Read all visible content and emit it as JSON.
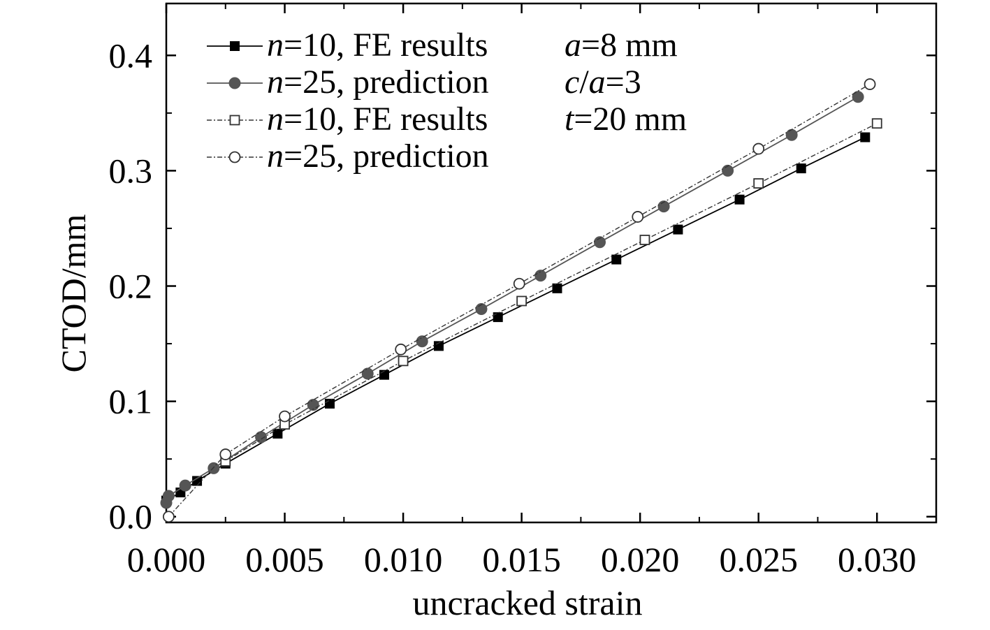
{
  "chart_data": {
    "type": "line",
    "title": "",
    "xlabel": "uncracked strain",
    "ylabel": "CTOD/mm",
    "xlim": [
      0.0,
      0.0325
    ],
    "ylim": [
      -0.005,
      0.445
    ],
    "xticks": [
      0.0,
      0.005,
      0.01,
      0.015,
      0.02,
      0.025,
      0.03
    ],
    "xtick_labels": [
      "0.000",
      "0.005",
      "0.010",
      "0.015",
      "0.020",
      "0.025",
      "0.030"
    ],
    "yticks": [
      0.0,
      0.1,
      0.2,
      0.3,
      0.4
    ],
    "ytick_labels": [
      "0.0",
      "0.1",
      "0.2",
      "0.3",
      "0.4"
    ],
    "grid": false,
    "legend_position": "top-left",
    "series": [
      {
        "name": "n=10, FE results",
        "n_label": "n",
        "rest_label": "=10, FE results",
        "marker": "square-filled",
        "color": "#000000",
        "line": "solid",
        "x": [
          0.0,
          0.0006,
          0.0013,
          0.0025,
          0.0047,
          0.0069,
          0.0092,
          0.0115,
          0.014,
          0.0165,
          0.019,
          0.0216,
          0.0242,
          0.0268,
          0.0295
        ],
        "y": [
          0.014,
          0.021,
          0.031,
          0.046,
          0.072,
          0.098,
          0.123,
          0.148,
          0.173,
          0.198,
          0.223,
          0.249,
          0.275,
          0.302,
          0.329
        ]
      },
      {
        "name": "n=25, prediction",
        "n_label": "n",
        "rest_label": "=25, prediction",
        "marker": "circle-filled",
        "color": "#555555",
        "line": "solid",
        "x": [
          0.0,
          0.0001,
          0.0008,
          0.002,
          0.004,
          0.0062,
          0.0085,
          0.0108,
          0.0133,
          0.0158,
          0.0183,
          0.021,
          0.0237,
          0.0264,
          0.0292
        ],
        "y": [
          0.012,
          0.018,
          0.027,
          0.042,
          0.069,
          0.097,
          0.124,
          0.152,
          0.18,
          0.209,
          0.238,
          0.269,
          0.3,
          0.331,
          0.364
        ]
      },
      {
        "name": "n=10, FE results",
        "n_label": "n",
        "rest_label": "=10, FE results",
        "marker": "square-open",
        "color": "#333333",
        "line": "dashdot",
        "x": [
          0.0025,
          0.005,
          0.01,
          0.015,
          0.0202,
          0.025,
          0.03
        ],
        "y": [
          0.048,
          0.08,
          0.135,
          0.187,
          0.24,
          0.289,
          0.341
        ]
      },
      {
        "name": "n=25, prediction",
        "n_label": "n",
        "rest_label": "=25, prediction",
        "marker": "circle-open",
        "color": "#333333",
        "line": "dashdot",
        "x": [
          0.0001,
          0.0025,
          0.005,
          0.0099,
          0.0149,
          0.0199,
          0.025,
          0.0297
        ],
        "y": [
          0.0,
          0.054,
          0.087,
          0.145,
          0.202,
          0.26,
          0.319,
          0.375
        ]
      }
    ],
    "annotations": [
      {
        "ital": "a",
        "rest": "=8 mm"
      },
      {
        "ital": "c",
        "mid": "/",
        "ital2": "a",
        "rest": "=3"
      },
      {
        "ital": "t",
        "rest": "=20 mm"
      }
    ]
  }
}
